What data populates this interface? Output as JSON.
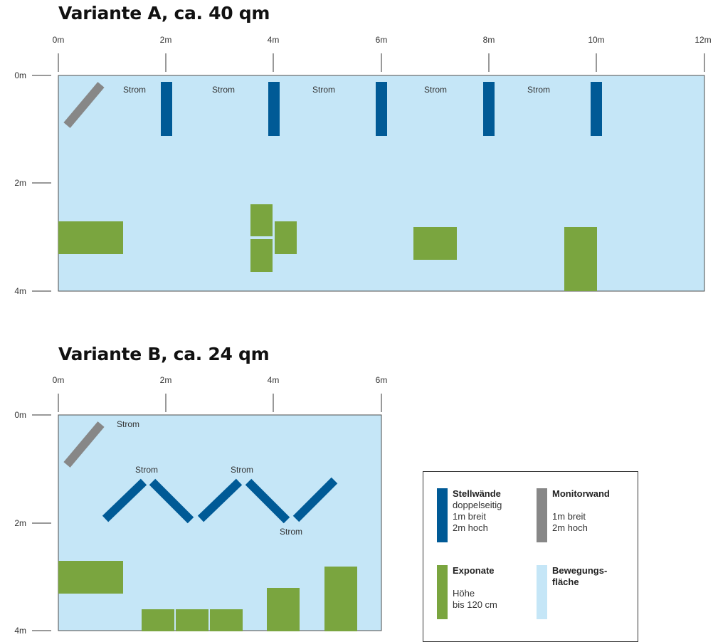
{
  "variant_a": {
    "title": "Variante A, ca. 40 qm",
    "x_ticks": [
      "0m",
      "2m",
      "4m",
      "6m",
      "8m",
      "10m",
      "12m"
    ],
    "y_ticks": [
      "0m",
      "2m",
      "4m"
    ],
    "strom_labels": [
      "Strom",
      "Strom",
      "Strom",
      "Strom",
      "Strom"
    ]
  },
  "variant_b": {
    "title": "Variante B, ca. 24 qm",
    "x_ticks": [
      "0m",
      "2m",
      "4m",
      "6m"
    ],
    "y_ticks": [
      "0m",
      "2m",
      "4m"
    ],
    "strom_labels": [
      "Strom",
      "Strom",
      "Strom",
      "Strom"
    ]
  },
  "legend": {
    "stellwaende": {
      "title": "Stellwände",
      "line1": "doppelseitig",
      "line2": "1m breit",
      "line3": "2m hoch"
    },
    "monitorwand": {
      "title": "Monitorwand",
      "line1": "",
      "line2": "1m breit",
      "line3": "2m hoch"
    },
    "exponate": {
      "title": "Exponate",
      "line1": "",
      "line2": "Höhe",
      "line3": "bis 120 cm"
    },
    "bewegungsflaeche": {
      "title": "Bewegungs-",
      "title2": "fläche"
    }
  },
  "colors": {
    "floor": "#c5e6f7",
    "stellwand": "#005a96",
    "monitorwand": "#878787",
    "exponat": "#7aa53f"
  }
}
